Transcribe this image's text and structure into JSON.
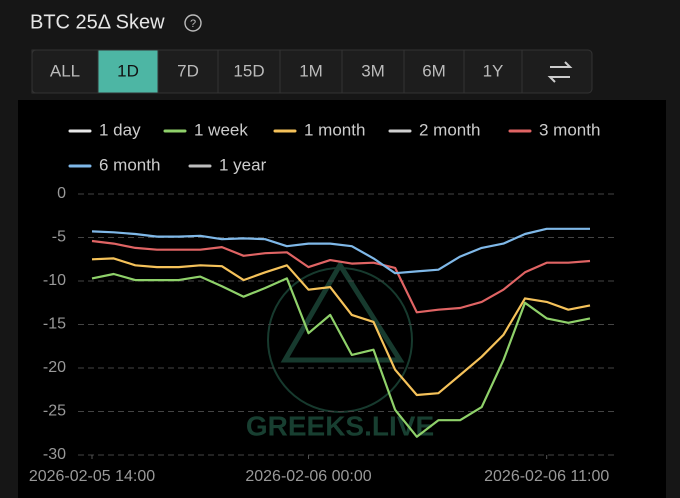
{
  "header": {
    "title": "BTC 25Δ Skew"
  },
  "controls": {
    "ranges": [
      "ALL",
      "1D",
      "7D",
      "15D",
      "1M",
      "3M",
      "6M",
      "1Y"
    ],
    "active": "1D"
  },
  "chart_data": {
    "type": "line",
    "watermark": "GREEKS.LIVE",
    "x": [
      "2026-02-05 14:00",
      "2026-02-05 15:00",
      "2026-02-05 16:00",
      "2026-02-05 17:00",
      "2026-02-05 18:00",
      "2026-02-05 19:00",
      "2026-02-05 20:00",
      "2026-02-05 21:00",
      "2026-02-05 22:00",
      "2026-02-05 23:00",
      "2026-02-06 00:00",
      "2026-02-06 01:00",
      "2026-02-06 02:00",
      "2026-02-06 03:00",
      "2026-02-06 04:00",
      "2026-02-06 05:00",
      "2026-02-06 06:00",
      "2026-02-06 07:00",
      "2026-02-06 08:00",
      "2026-02-06 09:00",
      "2026-02-06 10:00",
      "2026-02-06 11:00",
      "2026-02-06 12:00",
      "2026-02-06 13:00"
    ],
    "series": [
      {
        "name": "1 day",
        "color": "#e8e8e8",
        "values": [
          null,
          null,
          null,
          null,
          null,
          null,
          null,
          null,
          null,
          null,
          null,
          null,
          null,
          null,
          null,
          null,
          null,
          null,
          null,
          null,
          null,
          null,
          null,
          null
        ]
      },
      {
        "name": "1 week",
        "color": "#8fd16a",
        "values": [
          -9.7,
          -9.2,
          -9.9,
          -9.9,
          -9.9,
          -9.5,
          -10.6,
          -11.8,
          -10.8,
          -9.7,
          -16,
          -13.9,
          -18.5,
          -17.9,
          -24.8,
          -27.9,
          -26,
          -26,
          -24.5,
          -19.1,
          -12.5,
          -14.3,
          -14.8,
          -14.3
        ]
      },
      {
        "name": "1 month",
        "color": "#f5c25a",
        "values": [
          -7.5,
          -7.4,
          -8.2,
          -8.4,
          -8.4,
          -8.2,
          -8.3,
          -9.9,
          -9,
          -8.2,
          -11,
          -10.7,
          -13.9,
          -14.7,
          -20.2,
          -23.1,
          -22.9,
          -20.8,
          -18.7,
          -16.2,
          -12,
          -12.4,
          -13.3,
          -12.8
        ]
      },
      {
        "name": "2 month",
        "color": "#d0d0d0",
        "values": [
          null,
          null,
          null,
          null,
          null,
          null,
          null,
          null,
          null,
          null,
          null,
          null,
          null,
          null,
          null,
          null,
          null,
          null,
          null,
          null,
          null,
          null,
          null,
          null
        ]
      },
      {
        "name": "3 month",
        "color": "#e06464",
        "values": [
          -5.4,
          -5.7,
          -6.2,
          -6.4,
          -6.4,
          -6.4,
          -6.1,
          -7.1,
          -6.8,
          -6.7,
          -8.4,
          -7.6,
          -8,
          -7.9,
          -8.5,
          -13.6,
          -13.3,
          -13.1,
          -12.4,
          -11,
          -9,
          -7.9,
          -7.9,
          -7.7
        ]
      },
      {
        "name": "6 month",
        "color": "#7fb8e8",
        "values": [
          -4.3,
          -4.4,
          -4.6,
          -4.9,
          -4.9,
          -4.8,
          -5.2,
          -5.1,
          -5.2,
          -6,
          -5.7,
          -5.7,
          -6,
          -7.4,
          -9.1,
          -8.9,
          -8.7,
          -7.2,
          -6.2,
          -5.7,
          -4.6,
          -4,
          -4,
          -4
        ]
      },
      {
        "name": "1 year",
        "color": "#bdbdbd",
        "values": [
          null,
          null,
          null,
          null,
          null,
          null,
          null,
          null,
          null,
          null,
          null,
          null,
          null,
          null,
          null,
          null,
          null,
          null,
          null,
          null,
          null,
          null,
          null,
          null
        ]
      }
    ],
    "ylim": [
      -30,
      0
    ],
    "yticks": [
      0,
      -5,
      -10,
      -15,
      -20,
      -25,
      -30
    ],
    "grid": true,
    "xlim": [
      "2026-02-05 14:00",
      "2026-02-06 13:00"
    ],
    "xticks": [
      "2026-02-05 14:00",
      "2026-02-06 00:00",
      "2026-02-06 11:00"
    ]
  }
}
